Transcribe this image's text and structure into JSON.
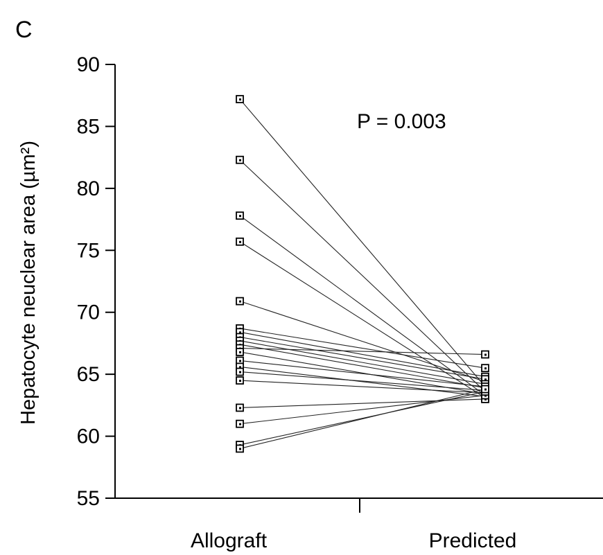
{
  "panel_label": "C",
  "chart_data": {
    "type": "line",
    "subtype": "paired-slope",
    "ylabel": "Hepatocyte neuclear area (µm²)",
    "xlabel": "",
    "categories": [
      "Allograft",
      "Predicted"
    ],
    "ylim": [
      55,
      90
    ],
    "yticks": [
      55,
      60,
      65,
      70,
      75,
      80,
      85,
      90
    ],
    "annotation": "P = 0.003",
    "grid": false,
    "legend": "none",
    "colors": {
      "line": "#222222",
      "marker": "#000000"
    },
    "pairs": [
      {
        "allograft": 87.2,
        "predicted": 64.0
      },
      {
        "allograft": 82.3,
        "predicted": 63.6
      },
      {
        "allograft": 77.8,
        "predicted": 63.3
      },
      {
        "allograft": 75.7,
        "predicted": 63.1
      },
      {
        "allograft": 70.9,
        "predicted": 64.4
      },
      {
        "allograft": 68.7,
        "predicted": 65.5
      },
      {
        "allograft": 68.4,
        "predicted": 64.8
      },
      {
        "allograft": 68.0,
        "predicted": 64.6
      },
      {
        "allograft": 67.7,
        "predicted": 64.2
      },
      {
        "allograft": 67.4,
        "predicted": 63.9
      },
      {
        "allograft": 67.1,
        "predicted": 66.6
      },
      {
        "allograft": 66.8,
        "predicted": 63.4
      },
      {
        "allograft": 66.1,
        "predicted": 64.0
      },
      {
        "allograft": 65.6,
        "predicted": 63.2
      },
      {
        "allograft": 65.2,
        "predicted": 63.7
      },
      {
        "allograft": 64.5,
        "predicted": 63.5
      },
      {
        "allograft": 62.3,
        "predicted": 63.0
      },
      {
        "allograft": 61.0,
        "predicted": 63.3
      },
      {
        "allograft": 59.3,
        "predicted": 63.6
      },
      {
        "allograft": 59.0,
        "predicted": 63.8
      }
    ]
  }
}
